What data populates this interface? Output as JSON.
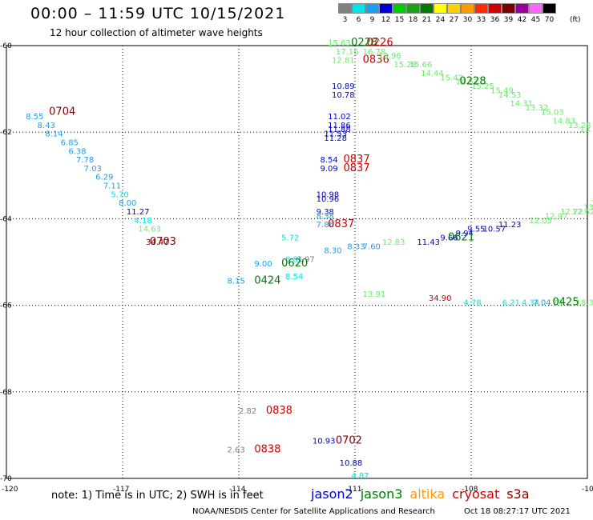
{
  "header": {
    "title": "00:00 – 11:59 UTC 10/15/2021",
    "subtitle": "12 hour collection of altimeter wave heights"
  },
  "scale": {
    "unit": "(ft)",
    "bins": [
      {
        "label": "3",
        "color": "#808080"
      },
      {
        "label": "6",
        "color": "#00e5e5"
      },
      {
        "label": "9",
        "color": "#1e9ef0"
      },
      {
        "label": "12",
        "color": "#0000cc"
      },
      {
        "label": "15",
        "color": "#00cc00"
      },
      {
        "label": "18",
        "color": "#1aa01a"
      },
      {
        "label": "21",
        "color": "#007a00"
      },
      {
        "label": "24",
        "color": "#ffff00"
      },
      {
        "label": "27",
        "color": "#ffd000"
      },
      {
        "label": "30",
        "color": "#ff9a00"
      },
      {
        "label": "33",
        "color": "#ff2a00"
      },
      {
        "label": "36",
        "color": "#cc0000"
      },
      {
        "label": "39",
        "color": "#800000"
      },
      {
        "label": "42",
        "color": "#990099"
      },
      {
        "label": "45",
        "color": "#ff66ff"
      },
      {
        "label": "70",
        "color": "#000000"
      }
    ]
  },
  "axes": {
    "lon_labels": [
      "-120",
      "-117",
      "-114",
      "-111",
      "-108",
      "-105"
    ],
    "lat_labels": [
      "-60",
      "-62",
      "-64",
      "-66",
      "-68",
      "-70"
    ]
  },
  "map_data": {
    "lon_range": [
      -120,
      -105
    ],
    "lat_range": [
      -60,
      -70
    ],
    "gridlines": true,
    "tracks": [
      {
        "time": "0704",
        "time_color": "#800000",
        "points": [
          {
            "lon": -119.5,
            "lat": -61.7,
            "value": "8.55",
            "color": "#1e9ef0"
          },
          {
            "lon": -119.2,
            "lat": -61.9,
            "value": "8.43",
            "color": "#1e9ef0"
          },
          {
            "lon": -119.0,
            "lat": -62.1,
            "value": "8.14",
            "color": "#1e9ef0"
          },
          {
            "lon": -118.6,
            "lat": -62.3,
            "value": "6.85",
            "color": "#1e9ef0"
          },
          {
            "lon": -118.4,
            "lat": -62.5,
            "value": "6.38",
            "color": "#1e9ef0"
          },
          {
            "lon": -118.2,
            "lat": -62.7,
            "value": "7.78",
            "color": "#1e9ef0"
          },
          {
            "lon": -118.0,
            "lat": -62.9,
            "value": "7.03",
            "color": "#1e9ef0"
          },
          {
            "lon": -117.7,
            "lat": -63.1,
            "value": "6.29",
            "color": "#1e9ef0"
          },
          {
            "lon": -117.5,
            "lat": -63.3,
            "value": "7.11",
            "color": "#1e9ef0"
          },
          {
            "lon": -117.3,
            "lat": -63.5,
            "value": "5.70",
            "color": "#00e5e5"
          },
          {
            "lon": -117.1,
            "lat": -63.7,
            "value": "8.00",
            "color": "#1e9ef0"
          },
          {
            "lon": -116.9,
            "lat": -63.9,
            "value": "11.27",
            "color": "#0000cc"
          },
          {
            "lon": -116.7,
            "lat": -64.1,
            "value": "4.18",
            "color": "#00e5e5"
          },
          {
            "lon": -116.6,
            "lat": -64.3,
            "value": "14.63",
            "color": "#66ee66"
          },
          {
            "lon": -116.4,
            "lat": -64.6,
            "value": "34.47",
            "color": "#800000"
          }
        ],
        "label_anchor": {
          "lon": -118.9,
          "lat": -61.6
        }
      },
      {
        "time": "0703",
        "time_color": "#800000",
        "points": [],
        "label_anchor": {
          "lon": -116.3,
          "lat": -64.6
        }
      },
      {
        "time": "0620",
        "time_color": "#007a00",
        "points": [
          {
            "lon": -113.6,
            "lat": -65.1,
            "value": "9.00",
            "color": "#1e9ef0"
          },
          {
            "lon": -112.8,
            "lat": -65.0,
            "value": "8.81",
            "color": "#00e5e5"
          },
          {
            "lon": -112.5,
            "lat": -65.0,
            "value": "1.97",
            "color": "#808080"
          },
          {
            "lon": -112.9,
            "lat": -64.5,
            "value": "5.72",
            "color": "#00e5e5"
          },
          {
            "lon": -111.8,
            "lat": -64.8,
            "value": "8.30",
            "color": "#1e9ef0"
          },
          {
            "lon": -111.2,
            "lat": -64.7,
            "value": "8.33",
            "color": "#1e9ef0"
          },
          {
            "lon": -110.8,
            "lat": -64.7,
            "value": "7.60",
            "color": "#1e9ef0"
          },
          {
            "lon": -110.3,
            "lat": -64.6,
            "value": "12.83",
            "color": "#66ee66"
          },
          {
            "lon": -109.4,
            "lat": -64.6,
            "value": "11.43",
            "color": "#0000cc"
          },
          {
            "lon": -108.8,
            "lat": -64.5,
            "value": "9.66",
            "color": "#0000cc"
          },
          {
            "lon": -108.4,
            "lat": -64.4,
            "value": "9.94",
            "color": "#0000cc"
          },
          {
            "lon": -108.1,
            "lat": -64.3,
            "value": "9.55",
            "color": "#0000cc"
          },
          {
            "lon": -107.7,
            "lat": -64.3,
            "value": "10.57",
            "color": "#0000cc"
          },
          {
            "lon": -107.3,
            "lat": -64.2,
            "value": "11.23",
            "color": "#0000cc"
          },
          {
            "lon": -106.5,
            "lat": -64.1,
            "value": "12.05",
            "color": "#66ee66"
          },
          {
            "lon": -106.1,
            "lat": -64.0,
            "value": "12.97",
            "color": "#66ee66"
          },
          {
            "lon": -105.7,
            "lat": -63.9,
            "value": "12.72",
            "color": "#66ee66"
          },
          {
            "lon": -105.4,
            "lat": -63.9,
            "value": "12.62",
            "color": "#66ee66"
          },
          {
            "lon": -105.1,
            "lat": -63.8,
            "value": "13.59",
            "color": "#66ee66"
          },
          {
            "lon": -104.9,
            "lat": -63.7,
            "value": "13.57",
            "color": "#66ee66"
          }
        ],
        "label_anchor": {
          "lon": -112.9,
          "lat": -65.1
        }
      },
      {
        "time": "0621",
        "time_color": "#007a00",
        "points": [],
        "label_anchor": {
          "lon": -108.6,
          "lat": -64.5
        }
      },
      {
        "time": "0424",
        "time_color": "#007a00",
        "points": [
          {
            "lon": -114.3,
            "lat": -65.5,
            "value": "8.15",
            "color": "#1e9ef0"
          },
          {
            "lon": -112.8,
            "lat": -65.4,
            "value": "8.54",
            "color": "#00e5e5"
          },
          {
            "lon": -110.8,
            "lat": -65.8,
            "value": "13.91",
            "color": "#66ee66"
          },
          {
            "lon": -109.1,
            "lat": -65.9,
            "value": "34.90",
            "color": "#cc0000"
          },
          {
            "lon": -108.2,
            "lat": -66.0,
            "value": "4.78",
            "color": "#00e5e5"
          },
          {
            "lon": -107.2,
            "lat": -66.0,
            "value": "6.21",
            "color": "#00e5e5"
          },
          {
            "lon": -106.7,
            "lat": -66.0,
            "value": "4.34",
            "color": "#00e5e5"
          },
          {
            "lon": -106.4,
            "lat": -66.0,
            "value": "7.04",
            "color": "#1e9ef0"
          },
          {
            "lon": -105.9,
            "lat": -66.0,
            "value": "79",
            "color": "#66ee66"
          },
          {
            "lon": -105.3,
            "lat": -66.0,
            "value": "18.3",
            "color": "#66ee66"
          }
        ],
        "label_anchor": {
          "lon": -113.6,
          "lat": -65.5
        }
      },
      {
        "time": "0425",
        "time_color": "#007a00",
        "points": [],
        "label_anchor": {
          "lon": -105.9,
          "lat": -66.0
        }
      },
      {
        "time": "0837",
        "time_color": "#cc0000",
        "points": [
          {
            "lon": -111.9,
            "lat": -62.7,
            "value": "8.54",
            "color": "#0000cc"
          },
          {
            "lon": -111.9,
            "lat": -62.9,
            "value": "9.09",
            "color": "#0000cc"
          },
          {
            "lon": -112.0,
            "lat": -63.5,
            "value": "10.98",
            "color": "#0000cc"
          },
          {
            "lon": -112.0,
            "lat": -63.6,
            "value": "10.96",
            "color": "#0000cc"
          },
          {
            "lon": -112.0,
            "lat": -63.9,
            "value": "9.38",
            "color": "#0000cc"
          },
          {
            "lon": -112.0,
            "lat": -64.0,
            "value": "8.38",
            "color": "#1e9ef0"
          },
          {
            "lon": -112.0,
            "lat": -64.2,
            "value": "7.86",
            "color": "#1e9ef0"
          }
        ],
        "label_anchor": {
          "lon": -111.3,
          "lat": -62.7
        }
      },
      {
        "time": "0837",
        "time_color": "#cc0000",
        "points": [],
        "label_anchor": {
          "lon": -111.3,
          "lat": -62.9
        }
      },
      {
        "time": "0837",
        "time_color": "#cc0000",
        "points": [],
        "label_anchor": {
          "lon": -111.7,
          "lat": -64.2
        }
      },
      {
        "time": "0836",
        "time_color": "#cc0000",
        "points": [
          {
            "lon": -111.6,
            "lat": -61.0,
            "value": "10.89",
            "color": "#0000cc"
          },
          {
            "lon": -111.6,
            "lat": -61.2,
            "value": "10.78",
            "color": "#0000cc"
          },
          {
            "lon": -111.7,
            "lat": -61.7,
            "value": "11.02",
            "color": "#0000cc"
          },
          {
            "lon": -111.7,
            "lat": -61.9,
            "value": "11.86",
            "color": "#0000cc"
          },
          {
            "lon": -111.7,
            "lat": -62.0,
            "value": "11.88",
            "color": "#0000cc"
          },
          {
            "lon": -111.8,
            "lat": -62.1,
            "value": "11.53",
            "color": "#0000cc"
          },
          {
            "lon": -111.8,
            "lat": -62.2,
            "value": "11.28",
            "color": "#0000cc"
          }
        ],
        "label_anchor": {
          "lon": -110.8,
          "lat": -60.4
        }
      },
      {
        "time": "0228",
        "time_color": "#007a00",
        "points": [
          {
            "lon": -111.7,
            "lat": -60.0,
            "value": "15.63",
            "color": "#66ee66"
          },
          {
            "lon": -111.5,
            "lat": -60.2,
            "value": "17.16",
            "color": "#66ee66"
          },
          {
            "lon": -111.6,
            "lat": -60.4,
            "value": "12.81",
            "color": "#66ee66"
          },
          {
            "lon": -110.8,
            "lat": -60.2,
            "value": "16.78",
            "color": "#66ee66"
          },
          {
            "lon": -110.4,
            "lat": -60.3,
            "value": "13.96",
            "color": "#66ee66"
          },
          {
            "lon": -110.0,
            "lat": -60.5,
            "value": "15.28",
            "color": "#66ee66"
          },
          {
            "lon": -109.6,
            "lat": -60.5,
            "value": "15.66",
            "color": "#66ee66"
          },
          {
            "lon": -109.3,
            "lat": -60.7,
            "value": "14.44",
            "color": "#66ee66"
          },
          {
            "lon": -108.8,
            "lat": -60.8,
            "value": "15.42",
            "color": "#66ee66"
          },
          {
            "lon": -108.4,
            "lat": -60.9,
            "value": "14.57",
            "color": "#66ee66"
          },
          {
            "lon": -108.0,
            "lat": -61.0,
            "value": "15.25",
            "color": "#66ee66"
          },
          {
            "lon": -107.5,
            "lat": -61.1,
            "value": "15.49",
            "color": "#66ee66"
          },
          {
            "lon": -107.3,
            "lat": -61.2,
            "value": "14.53",
            "color": "#66ee66"
          },
          {
            "lon": -107.0,
            "lat": -61.4,
            "value": "14.31",
            "color": "#66ee66"
          },
          {
            "lon": -106.6,
            "lat": -61.5,
            "value": "13.32",
            "color": "#66ee66"
          },
          {
            "lon": -106.2,
            "lat": -61.6,
            "value": "15.03",
            "color": "#66ee66"
          },
          {
            "lon": -105.9,
            "lat": -61.8,
            "value": "14.83",
            "color": "#66ee66"
          },
          {
            "lon": -105.5,
            "lat": -61.9,
            "value": "13.28",
            "color": "#66ee66"
          },
          {
            "lon": -105.2,
            "lat": -62.0,
            "value": "13.01",
            "color": "#66ee66"
          },
          {
            "lon": -104.8,
            "lat": -62.1,
            "value": "15.91",
            "color": "#66ee66"
          },
          {
            "lon": -104.4,
            "lat": -62.2,
            "value": "15.3",
            "color": "#66ee66"
          }
        ],
        "label_anchor": {
          "lon": -108.3,
          "lat": -60.9
        }
      },
      {
        "time": "0228",
        "time_color": "#007a00",
        "points": [],
        "label_anchor": {
          "lon": -111.1,
          "lat": -60.0
        }
      },
      {
        "time": "0226",
        "time_color": "#cc0000",
        "points": [],
        "label_anchor": {
          "lon": -110.7,
          "lat": -60.0
        }
      },
      {
        "time": "0838",
        "time_color": "#cc0000",
        "points": [
          {
            "lon": -114.0,
            "lat": -68.5,
            "value": "2.82",
            "color": "#808080"
          }
        ],
        "label_anchor": {
          "lon": -113.3,
          "lat": -68.5
        }
      },
      {
        "time": "0838",
        "time_color": "#cc0000",
        "points": [
          {
            "lon": -114.3,
            "lat": -69.4,
            "value": "2.63",
            "color": "#808080"
          }
        ],
        "label_anchor": {
          "lon": -113.6,
          "lat": -69.4
        }
      },
      {
        "time": "0702",
        "time_color": "#800000",
        "points": [
          {
            "lon": -112.1,
            "lat": -69.2,
            "value": "10.93",
            "color": "#0000cc"
          },
          {
            "lon": -111.4,
            "lat": -69.7,
            "value": "10.88",
            "color": "#0000cc"
          },
          {
            "lon": -111.1,
            "lat": -70.0,
            "value": "4.87",
            "color": "#00e5e5"
          }
        ],
        "label_anchor": {
          "lon": -111.5,
          "lat": -69.2
        }
      }
    ]
  },
  "notes": {
    "text": "note: 1) Time is in UTC; 2) SWH is in feet"
  },
  "satellites": [
    {
      "name": "jason2",
      "color": "#0000cc"
    },
    {
      "name": "jason3",
      "color": "#007a00"
    },
    {
      "name": "altika",
      "color": "#ff9a00"
    },
    {
      "name": "cryosat",
      "color": "#cc0000"
    },
    {
      "name": "s3a",
      "color": "#800000"
    }
  ],
  "footer": {
    "left": "NOAA/NESDIS Center for Satellite Applications and Research",
    "right": "Oct 18 08:27:17 UTC 2021"
  }
}
